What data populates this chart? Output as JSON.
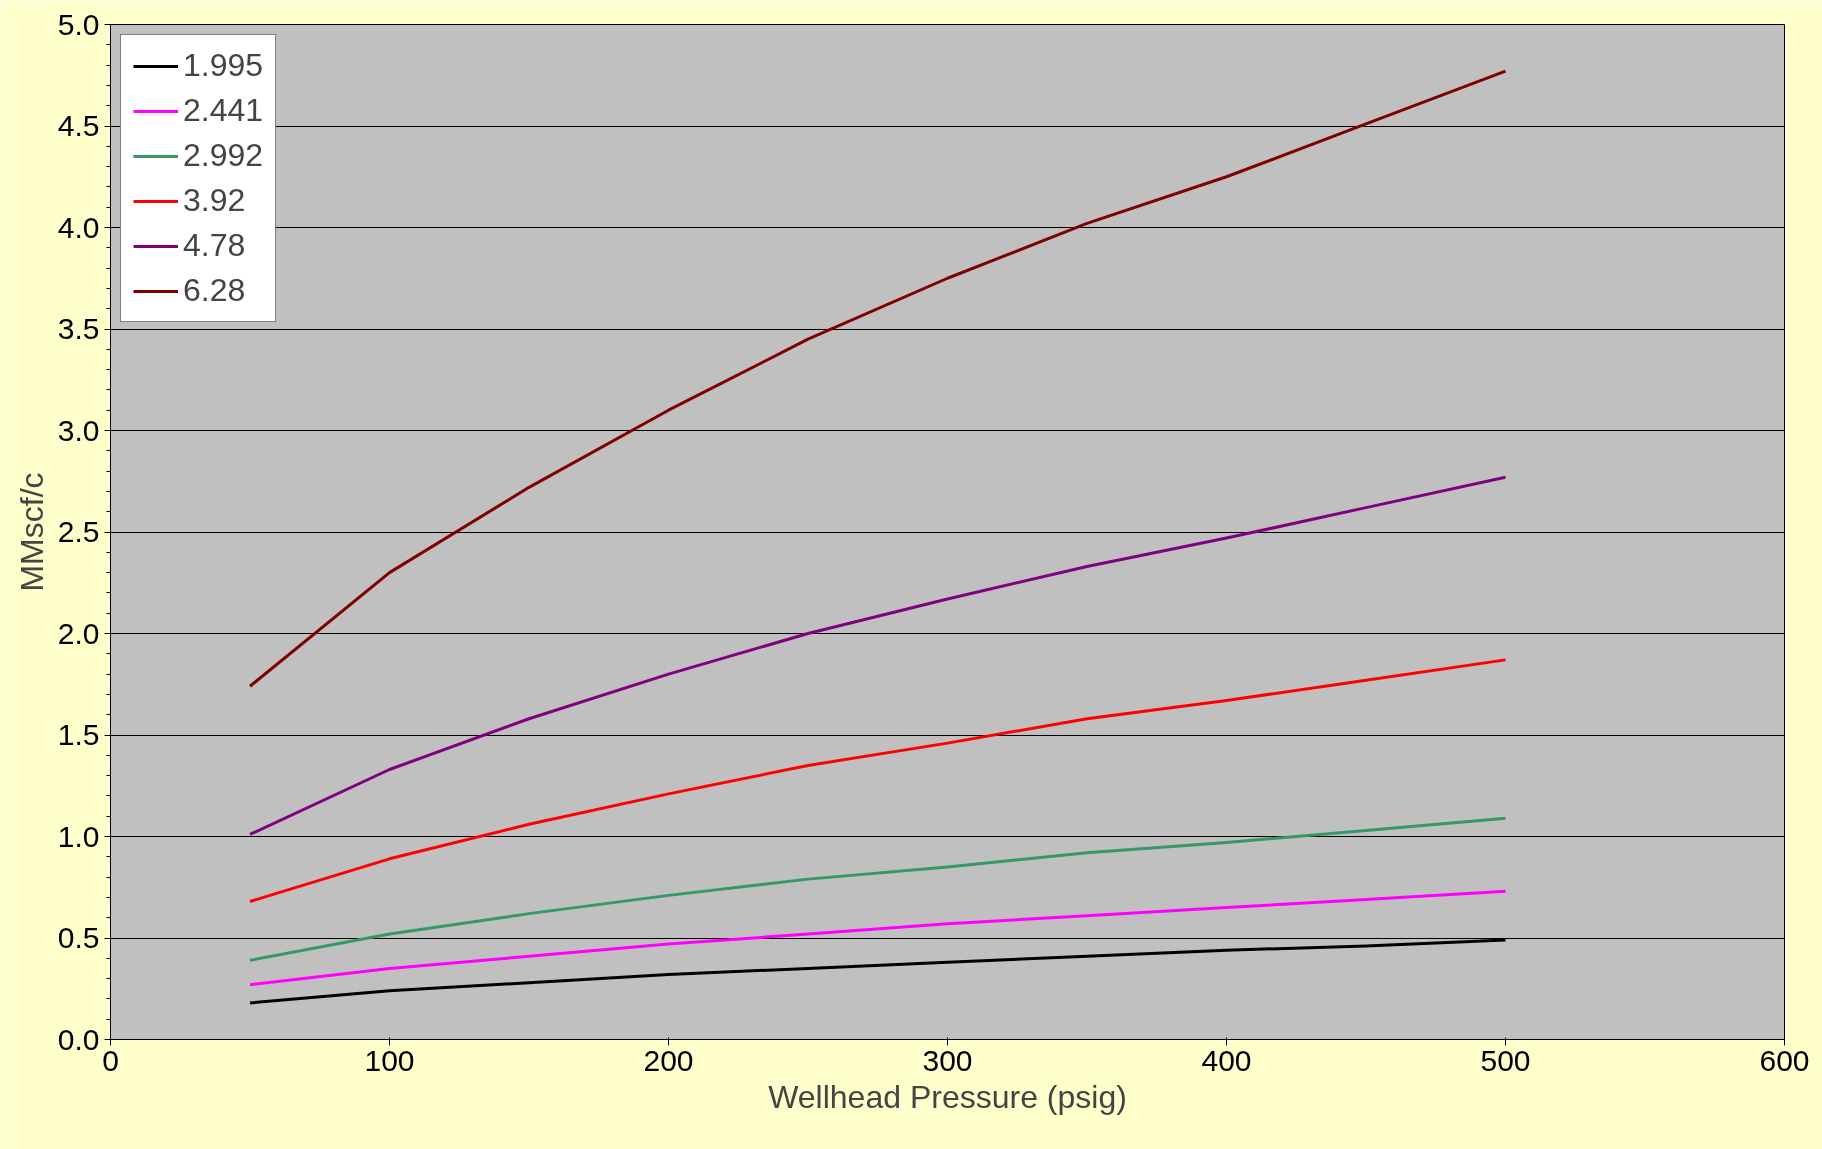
{
  "chart_data": {
    "type": "line",
    "xlabel": "Wellhead Pressure (psig)",
    "ylabel": "MMscf/c",
    "x": [
      50,
      100,
      150,
      200,
      250,
      300,
      350,
      400,
      450,
      500
    ],
    "series": [
      {
        "name": "1.995",
        "color": "#000000",
        "values": [
          0.18,
          0.24,
          0.28,
          0.32,
          0.35,
          0.38,
          0.41,
          0.44,
          0.46,
          0.49
        ]
      },
      {
        "name": "2.441",
        "color": "#ff00ff",
        "values": [
          0.27,
          0.35,
          0.41,
          0.47,
          0.52,
          0.57,
          0.61,
          0.65,
          0.69,
          0.73
        ]
      },
      {
        "name": "2.992",
        "color": "#339966",
        "values": [
          0.39,
          0.52,
          0.62,
          0.71,
          0.79,
          0.85,
          0.92,
          0.97,
          1.03,
          1.09
        ]
      },
      {
        "name": "3.92",
        "color": "#ff0000",
        "values": [
          0.68,
          0.89,
          1.06,
          1.21,
          1.35,
          1.46,
          1.58,
          1.67,
          1.77,
          1.87
        ]
      },
      {
        "name": "4.78",
        "color": "#800080",
        "values": [
          1.01,
          1.33,
          1.58,
          1.8,
          2.0,
          2.17,
          2.33,
          2.47,
          2.62,
          2.77
        ]
      },
      {
        "name": "6.28",
        "color": "#800000",
        "values": [
          1.74,
          2.3,
          2.72,
          3.1,
          3.45,
          3.75,
          4.02,
          4.25,
          4.51,
          4.77
        ]
      }
    ],
    "xlim": [
      0,
      600
    ],
    "xticks": [
      0,
      100,
      200,
      300,
      400,
      500,
      600
    ],
    "ylim": [
      0,
      5
    ],
    "yticks": [
      {
        "value": 0,
        "label": "0.0"
      },
      {
        "value": 0.5,
        "label": "0.5"
      },
      {
        "value": 1,
        "label": "1.0"
      },
      {
        "value": 1.5,
        "label": "1.5"
      },
      {
        "value": 2,
        "label": "2.0"
      },
      {
        "value": 2.5,
        "label": "2.5"
      },
      {
        "value": 3,
        "label": "3.0"
      },
      {
        "value": 3.5,
        "label": "3.5"
      },
      {
        "value": 4,
        "label": "4.0"
      },
      {
        "value": 4.5,
        "label": "4.5"
      },
      {
        "value": 5,
        "label": "5.0"
      }
    ],
    "grid": "y",
    "legend": "top left",
    "marker": "none",
    "line_style": "solid"
  }
}
